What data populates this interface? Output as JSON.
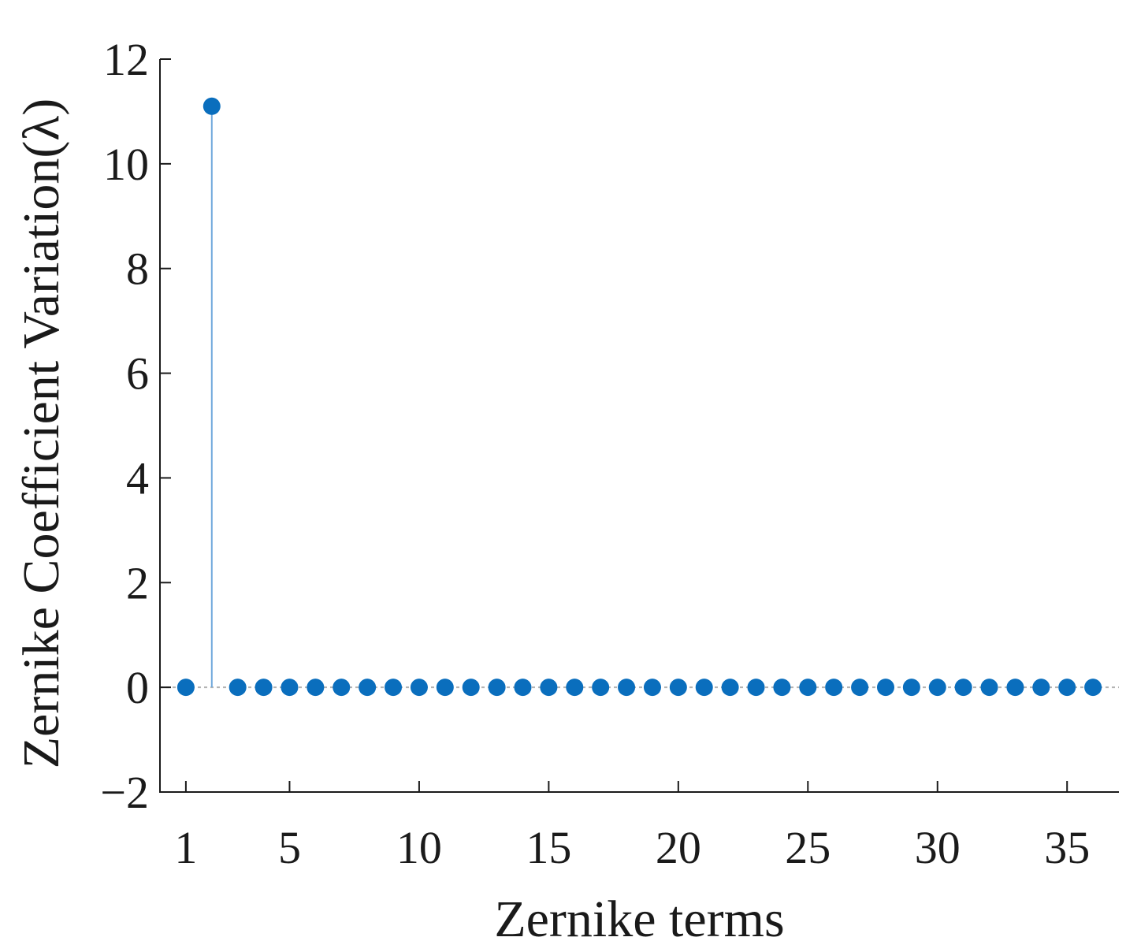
{
  "chart_data": {
    "type": "stem",
    "xlabel": "Zernike terms",
    "ylabel": "Zernike Coefficient Variation(λ)",
    "xlim": [
      0,
      37
    ],
    "ylim": [
      -2,
      12
    ],
    "xticks": [
      1,
      5,
      10,
      15,
      20,
      25,
      30,
      35
    ],
    "xtick_labels": [
      "1",
      "5",
      "10",
      "15",
      "20",
      "25",
      "30",
      "35"
    ],
    "yticks": [
      -2,
      0,
      2,
      4,
      6,
      8,
      10,
      12
    ],
    "ytick_labels": [
      "−2",
      "0",
      "2",
      "4",
      "6",
      "8",
      "10",
      "12"
    ],
    "baseline": 0,
    "marker_color": "#0a6ebd",
    "stem_color": "#6fa8dc",
    "x": [
      1,
      2,
      3,
      4,
      5,
      6,
      7,
      8,
      9,
      10,
      11,
      12,
      13,
      14,
      15,
      16,
      17,
      18,
      19,
      20,
      21,
      22,
      23,
      24,
      25,
      26,
      27,
      28,
      29,
      30,
      31,
      32,
      33,
      34,
      35,
      36
    ],
    "values": [
      0,
      11.1,
      0,
      0,
      0,
      0,
      0,
      0,
      0,
      0,
      0,
      0,
      0,
      0,
      0,
      0,
      0,
      0,
      0,
      0,
      0,
      0,
      0,
      0,
      0,
      0,
      0,
      0,
      0,
      0,
      0,
      0,
      0,
      0,
      0,
      0
    ]
  }
}
